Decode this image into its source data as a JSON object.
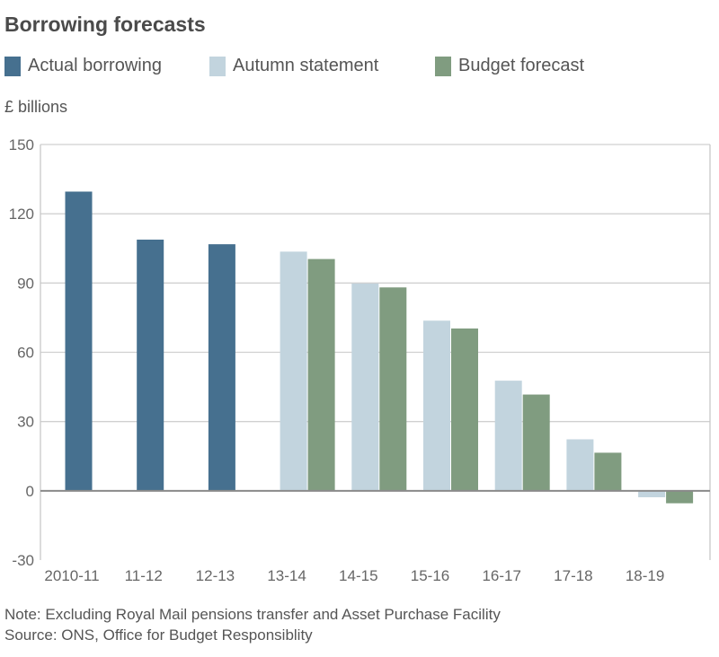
{
  "chart_data": {
    "type": "bar",
    "title": "Borrowing forecasts",
    "ylabel": "£ billions",
    "xlabel": "",
    "ylim": [
      -30,
      150
    ],
    "yticks": [
      150,
      120,
      90,
      60,
      30,
      0,
      -30
    ],
    "grid": true,
    "legend_position": "top-left",
    "categories": [
      "2010-11",
      "11-12",
      "12-13",
      "13-14",
      "14-15",
      "15-16",
      "16-17",
      "17-18",
      "18-19"
    ],
    "series": [
      {
        "name": "Actual borrowing",
        "color": "#46708f",
        "values": [
          129.6,
          108.8,
          106.8,
          null,
          null,
          null,
          null,
          null,
          null
        ]
      },
      {
        "name": "Autumn statement",
        "color": "#c2d4de",
        "values": [
          null,
          null,
          null,
          103.6,
          89.8,
          73.7,
          47.7,
          22.3,
          -2.8
        ]
      },
      {
        "name": "Budget forecast",
        "color": "#809c80",
        "values": [
          null,
          null,
          null,
          100.4,
          88.1,
          70.3,
          41.7,
          16.5,
          -5.4
        ]
      }
    ]
  },
  "notes": {
    "note": "Note:  Excluding Royal Mail pensions transfer and Asset Purchase Facility",
    "source": "Source: ONS, Office for Budget Responsiblity"
  }
}
